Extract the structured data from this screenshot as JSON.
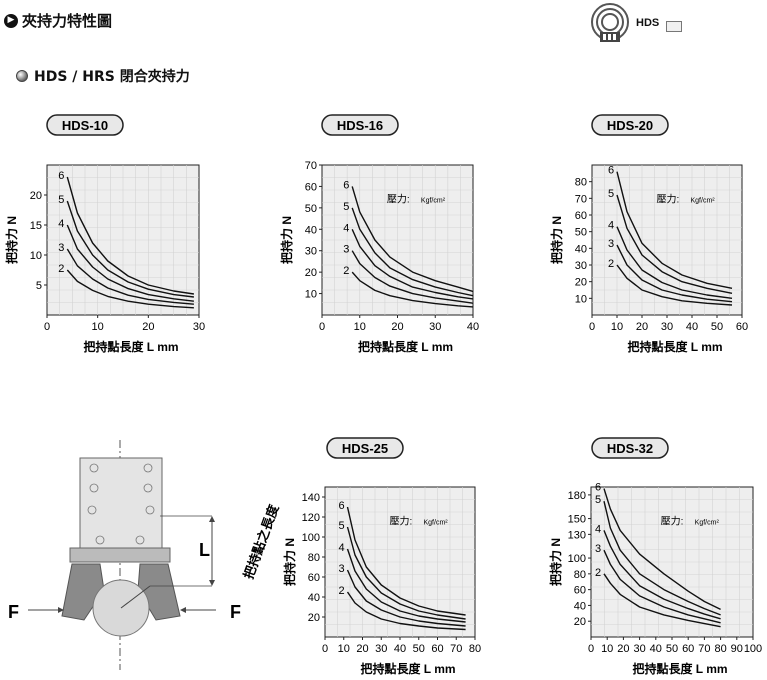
{
  "header": {
    "title": "夾持力特性圖",
    "play_icon": "play-circle-icon",
    "logo_icon": "hds-logo-icon",
    "model_tag": "HDS"
  },
  "section": {
    "title": "HDS / HRS 閉合夾持力",
    "bullet_icon": "bullet-circle-icon"
  },
  "shared": {
    "ylabel": "把持力 N",
    "xlabel": "把持點長度 L mm",
    "pressure_label": "壓力: ",
    "pressure_unit": "Kgf/cm²"
  },
  "diagram": {
    "force_left": "F",
    "force_right": "F",
    "L_label": "L",
    "L_caption": "把持點之長度"
  },
  "chart_data": [
    {
      "type": "line",
      "title": "HDS-10",
      "xlabel": "把持點長度 L mm",
      "ylabel": "把持力 N",
      "xlim": [
        0,
        30
      ],
      "ylim": [
        0,
        25
      ],
      "xticks": [
        0,
        10,
        20,
        30
      ],
      "yticks": [
        5,
        10,
        15,
        20
      ],
      "pressure_label": "",
      "series": [
        {
          "name": "6",
          "x": [
            4,
            6,
            9,
            12,
            16,
            20,
            25,
            29
          ],
          "y": [
            23,
            17,
            12,
            9,
            6.5,
            5,
            4,
            3.5
          ]
        },
        {
          "name": "5",
          "x": [
            4,
            6,
            9,
            12,
            16,
            20,
            25,
            29
          ],
          "y": [
            19,
            14,
            10,
            7.5,
            5.5,
            4.3,
            3.4,
            3
          ]
        },
        {
          "name": "4",
          "x": [
            4,
            6,
            9,
            12,
            16,
            20,
            25,
            29
          ],
          "y": [
            15,
            11,
            8,
            6,
            4.4,
            3.4,
            2.7,
            2.3
          ]
        },
        {
          "name": "3",
          "x": [
            4,
            6,
            9,
            12,
            16,
            20,
            25,
            29
          ],
          "y": [
            11,
            8.2,
            6,
            4.5,
            3.3,
            2.6,
            2.1,
            1.8
          ]
        },
        {
          "name": "2",
          "x": [
            4,
            6,
            9,
            12,
            16,
            20,
            25,
            29
          ],
          "y": [
            7.5,
            5.6,
            4.1,
            3.1,
            2.3,
            1.8,
            1.4,
            1.2
          ]
        }
      ]
    },
    {
      "type": "line",
      "title": "HDS-16",
      "xlabel": "把持點長度 L mm",
      "ylabel": "把持力 N",
      "xlim": [
        0,
        40
      ],
      "ylim": [
        0,
        70
      ],
      "xticks": [
        0,
        10,
        20,
        30,
        40
      ],
      "yticks": [
        10,
        20,
        30,
        40,
        50,
        60,
        70
      ],
      "pressure_label": "壓力: ",
      "series": [
        {
          "name": "6",
          "x": [
            8,
            10,
            14,
            18,
            24,
            30,
            36,
            40
          ],
          "y": [
            60,
            48,
            35,
            27,
            20,
            16,
            13,
            11
          ]
        },
        {
          "name": "5",
          "x": [
            8,
            10,
            14,
            18,
            24,
            30,
            36,
            40
          ],
          "y": [
            50,
            40,
            29,
            22,
            16.5,
            13,
            10.5,
            9
          ]
        },
        {
          "name": "4",
          "x": [
            8,
            10,
            14,
            18,
            24,
            30,
            36,
            40
          ],
          "y": [
            40,
            32,
            23,
            18,
            13,
            10.5,
            8.5,
            7.5
          ]
        },
        {
          "name": "3",
          "x": [
            8,
            10,
            14,
            18,
            24,
            30,
            36,
            40
          ],
          "y": [
            30,
            24,
            17.5,
            13.5,
            10,
            8,
            6.5,
            5.5
          ]
        },
        {
          "name": "2",
          "x": [
            8,
            10,
            14,
            18,
            24,
            30,
            36,
            40
          ],
          "y": [
            20,
            16,
            11.5,
            9,
            6.7,
            5.3,
            4.3,
            3.8
          ]
        }
      ]
    },
    {
      "type": "line",
      "title": "HDS-20",
      "xlabel": "把持點長度 L mm",
      "ylabel": "把持力 N",
      "xlim": [
        0,
        60
      ],
      "ylim": [
        0,
        90
      ],
      "xticks": [
        0,
        10,
        20,
        30,
        40,
        50,
        60
      ],
      "yticks": [
        10,
        20,
        30,
        40,
        50,
        60,
        70,
        80
      ],
      "pressure_label": "壓力: ",
      "series": [
        {
          "name": "6",
          "x": [
            10,
            14,
            20,
            28,
            36,
            46,
            56
          ],
          "y": [
            86,
            62,
            43,
            31,
            24,
            19,
            16
          ]
        },
        {
          "name": "5",
          "x": [
            10,
            14,
            20,
            28,
            36,
            46,
            56
          ],
          "y": [
            72,
            52,
            36,
            26,
            20,
            16,
            13
          ]
        },
        {
          "name": "4",
          "x": [
            10,
            14,
            20,
            28,
            36,
            46,
            56
          ],
          "y": [
            53,
            39,
            27,
            19.5,
            15,
            12,
            10
          ]
        },
        {
          "name": "3",
          "x": [
            10,
            14,
            20,
            28,
            36,
            46,
            56
          ],
          "y": [
            42,
            30,
            21,
            15,
            12,
            9.5,
            8
          ]
        },
        {
          "name": "2",
          "x": [
            10,
            14,
            20,
            28,
            36,
            46,
            56
          ],
          "y": [
            30,
            22,
            15,
            11,
            8.5,
            7,
            6
          ]
        }
      ]
    },
    {
      "type": "line",
      "title": "HDS-25",
      "xlabel": "把持點長度 L mm",
      "ylabel": "把持力 N",
      "xlim": [
        0,
        80
      ],
      "ylim": [
        0,
        150
      ],
      "xticks": [
        0,
        10,
        20,
        30,
        40,
        50,
        60,
        70,
        80
      ],
      "yticks": [
        20,
        40,
        60,
        80,
        100,
        120,
        140
      ],
      "pressure_label": "壓力: ",
      "series": [
        {
          "name": "6",
          "x": [
            12,
            16,
            22,
            30,
            40,
            50,
            60,
            75
          ],
          "y": [
            130,
            97,
            70,
            52,
            39,
            31,
            26,
            22
          ]
        },
        {
          "name": "5",
          "x": [
            12,
            16,
            22,
            30,
            40,
            50,
            60,
            75
          ],
          "y": [
            110,
            82,
            60,
            44,
            33,
            26,
            22,
            18
          ]
        },
        {
          "name": "4",
          "x": [
            12,
            16,
            22,
            30,
            40,
            50,
            60,
            75
          ],
          "y": [
            88,
            66,
            48,
            35,
            26,
            21,
            18,
            15
          ]
        },
        {
          "name": "3",
          "x": [
            12,
            16,
            22,
            30,
            40,
            50,
            60,
            75
          ],
          "y": [
            67,
            50,
            36,
            27,
            20,
            16,
            13.5,
            11
          ]
        },
        {
          "name": "2",
          "x": [
            12,
            16,
            22,
            30,
            40,
            50,
            60,
            75
          ],
          "y": [
            45,
            34,
            25,
            18,
            13.5,
            11,
            9,
            7.5
          ]
        }
      ]
    },
    {
      "type": "line",
      "title": "HDS-32",
      "xlabel": "把持點長度 L mm",
      "ylabel": "把持力 N",
      "xlim": [
        0,
        100
      ],
      "ylim": [
        0,
        190
      ],
      "xticks": [
        0,
        10,
        20,
        30,
        40,
        50,
        60,
        70,
        80,
        90,
        100
      ],
      "yticks": [
        20,
        40,
        60,
        80,
        100,
        130,
        150,
        180
      ],
      "pressure_label": "壓力: ",
      "series": [
        {
          "name": "6",
          "x": [
            8,
            12,
            18,
            30,
            45,
            60,
            70,
            80
          ],
          "y": [
            188,
            162,
            135,
            105,
            80,
            58,
            45,
            35
          ]
        },
        {
          "name": "5",
          "x": [
            8,
            12,
            18,
            30,
            45,
            60,
            70,
            80
          ],
          "y": [
            172,
            138,
            110,
            80,
            60,
            45,
            36,
            28
          ]
        },
        {
          "name": "4",
          "x": [
            8,
            12,
            18,
            30,
            45,
            60,
            70,
            80
          ],
          "y": [
            135,
            115,
            92,
            65,
            48,
            36,
            29,
            23
          ]
        },
        {
          "name": "3",
          "x": [
            8,
            12,
            18,
            30,
            45,
            60,
            70,
            80
          ],
          "y": [
            110,
            92,
            73,
            52,
            38,
            28,
            23,
            18
          ]
        },
        {
          "name": "2",
          "x": [
            8,
            12,
            18,
            30,
            45,
            60,
            70,
            80
          ],
          "y": [
            80,
            68,
            54,
            38,
            28,
            21,
            17,
            13
          ]
        }
      ]
    }
  ]
}
